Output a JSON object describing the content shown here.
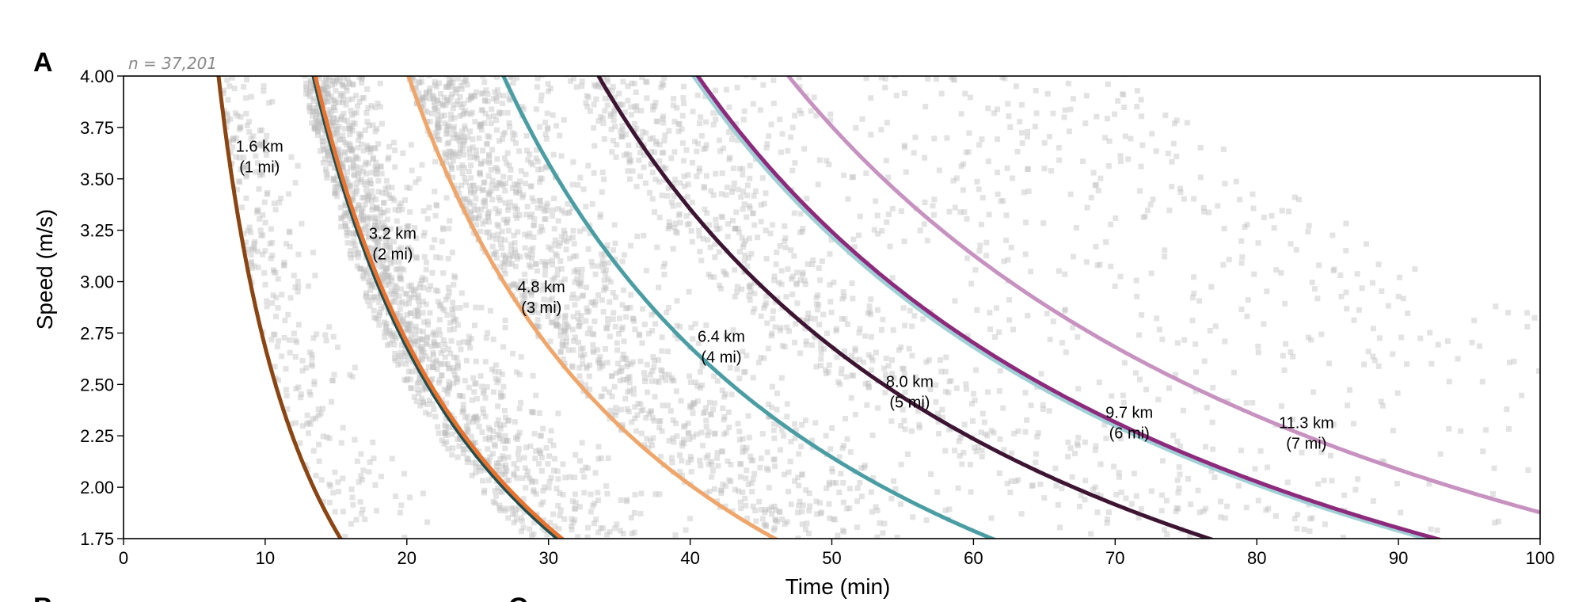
{
  "panel": {
    "label": "A",
    "n_text": "n = 37,201",
    "next_panel_labels": [
      "B",
      "C"
    ]
  },
  "colors": {
    "scatter": "#bdbdbd",
    "axis": "#000000",
    "curve_1mi": "#8b4513",
    "curve_2mi_dark": "#1f4e4f",
    "curve_2mi": "#e8732f",
    "curve_3mi": "#f0a66a",
    "curve_4mi": "#4a9ea3",
    "curve_5mi": "#3d1533",
    "curve_6mi_light": "#9fd0d6",
    "curve_6mi": "#8e2a7c",
    "curve_7mi": "#c792c0"
  },
  "chart_data": {
    "type": "scatter",
    "title": "",
    "xlabel": "Time (min)",
    "ylabel": "Speed (m/s)",
    "xlim": [
      0,
      100
    ],
    "ylim": [
      1.75,
      4.0
    ],
    "xticks": [
      "0",
      "10",
      "20",
      "30",
      "40",
      "50",
      "60",
      "70",
      "80",
      "90",
      "100"
    ],
    "xtick_values": [
      0,
      10,
      20,
      30,
      40,
      50,
      60,
      70,
      80,
      90,
      100
    ],
    "yticks": [
      "4.00",
      "3.75",
      "3.50",
      "3.25",
      "3.00",
      "2.75",
      "2.50",
      "2.25",
      "2.00",
      "1.75"
    ],
    "ytick_values": [
      4.0,
      3.75,
      3.5,
      3.25,
      3.0,
      2.75,
      2.5,
      2.25,
      2.0,
      1.75
    ],
    "scatter_points_count": 37201,
    "series": [
      {
        "name": "1.6 km (1 mi)",
        "distance_km": 1.609,
        "color_key": "curve_1mi",
        "label_line1": "1.6 km",
        "label_line2": "(1 mi)",
        "label_at": [
          9.6,
          3.625
        ]
      },
      {
        "name": "3.2 km (2 mi) reference",
        "distance_km": 3.219,
        "color_key": "curve_2mi_dark",
        "label_line1": "",
        "label_line2": ""
      },
      {
        "name": "3.2 km (2 mi)",
        "distance_km": 3.25,
        "color_key": "curve_2mi",
        "label_line1": "3.2 km",
        "label_line2": "(2 mi)",
        "label_at": [
          19.0,
          3.2
        ]
      },
      {
        "name": "4.8 km (3 mi)",
        "distance_km": 4.828,
        "color_key": "curve_3mi",
        "label_line1": "4.8 km",
        "label_line2": "(3 mi)",
        "label_at": [
          29.5,
          2.94
        ]
      },
      {
        "name": "6.4 km (4 mi)",
        "distance_km": 6.437,
        "color_key": "curve_4mi",
        "label_line1": "6.4 km",
        "label_line2": "(4 mi)",
        "label_at": [
          42.2,
          2.7
        ]
      },
      {
        "name": "8.0 km (5 mi)",
        "distance_km": 8.047,
        "color_key": "curve_5mi",
        "label_line1": "8.0 km",
        "label_line2": "(5 mi)",
        "label_at": [
          55.5,
          2.48
        ]
      },
      {
        "name": "9.7 km (6 mi) reference",
        "distance_km": 9.656,
        "color_key": "curve_6mi_light",
        "label_line1": "",
        "label_line2": ""
      },
      {
        "name": "9.7 km (6 mi)",
        "distance_km": 9.73,
        "color_key": "curve_6mi",
        "label_line1": "9.7 km",
        "label_line2": "(6 mi)",
        "label_at": [
          71.0,
          2.33
        ]
      },
      {
        "name": "11.3 km (7 mi)",
        "distance_km": 11.265,
        "color_key": "curve_7mi",
        "label_line1": "11.3 km",
        "label_line2": "(7 mi)",
        "label_at": [
          83.5,
          2.28
        ]
      }
    ]
  }
}
